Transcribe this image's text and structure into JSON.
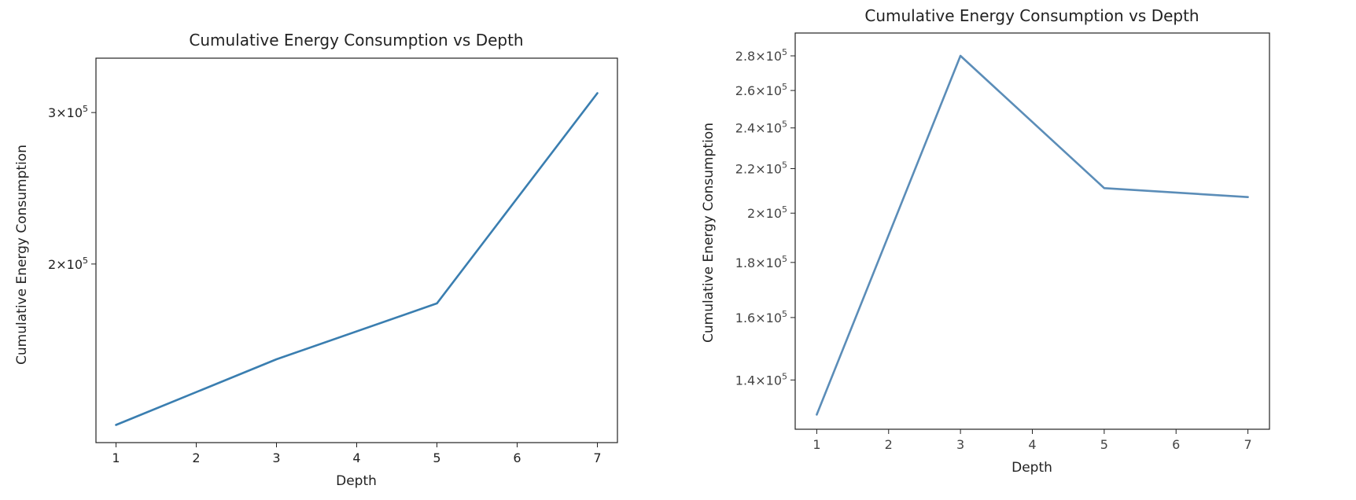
{
  "chart_data": [
    {
      "type": "line",
      "title": "Cumulative Energy Consumption vs Depth",
      "xlabel": "Depth",
      "ylabel": "Cumulative Energy Consumption",
      "yscale": "log",
      "x": [
        1,
        3,
        5,
        7
      ],
      "y": [
        130000,
        155000,
        180000,
        316000
      ],
      "xlim": [
        0.75,
        7.25
      ],
      "ylim": [
        124000,
        347000
      ],
      "xticks": [
        1,
        2,
        3,
        4,
        5,
        6,
        7
      ],
      "yticks": [
        {
          "value": 200000,
          "base": "2",
          "exponent": "5"
        },
        {
          "value": 300000,
          "base": "3",
          "exponent": "5"
        }
      ],
      "grid": false,
      "line_color": "#3a7eb0"
    },
    {
      "type": "line",
      "title": "Cumulative Energy Consumption vs Depth",
      "xlabel": "Depth",
      "ylabel": "Cumulative Energy Consumption",
      "yscale": "log",
      "x": [
        1,
        3,
        5,
        7
      ],
      "y": [
        130000,
        280000,
        211000,
        207000
      ],
      "xlim": [
        0.7,
        7.3
      ],
      "ylim": [
        126000,
        294000
      ],
      "xticks": [
        1,
        2,
        3,
        4,
        5,
        6,
        7
      ],
      "yticks": [
        {
          "value": 140000,
          "base": "1.4",
          "exponent": "5"
        },
        {
          "value": 160000,
          "base": "1.6",
          "exponent": "5"
        },
        {
          "value": 180000,
          "base": "1.8",
          "exponent": "5"
        },
        {
          "value": 200000,
          "base": "2",
          "exponent": "5"
        },
        {
          "value": 220000,
          "base": "2.2",
          "exponent": "5"
        },
        {
          "value": 240000,
          "base": "2.4",
          "exponent": "5"
        },
        {
          "value": 260000,
          "base": "2.6",
          "exponent": "5"
        },
        {
          "value": 280000,
          "base": "2.8",
          "exponent": "5"
        }
      ],
      "grid": false,
      "line_color": "#5b8db8"
    }
  ]
}
